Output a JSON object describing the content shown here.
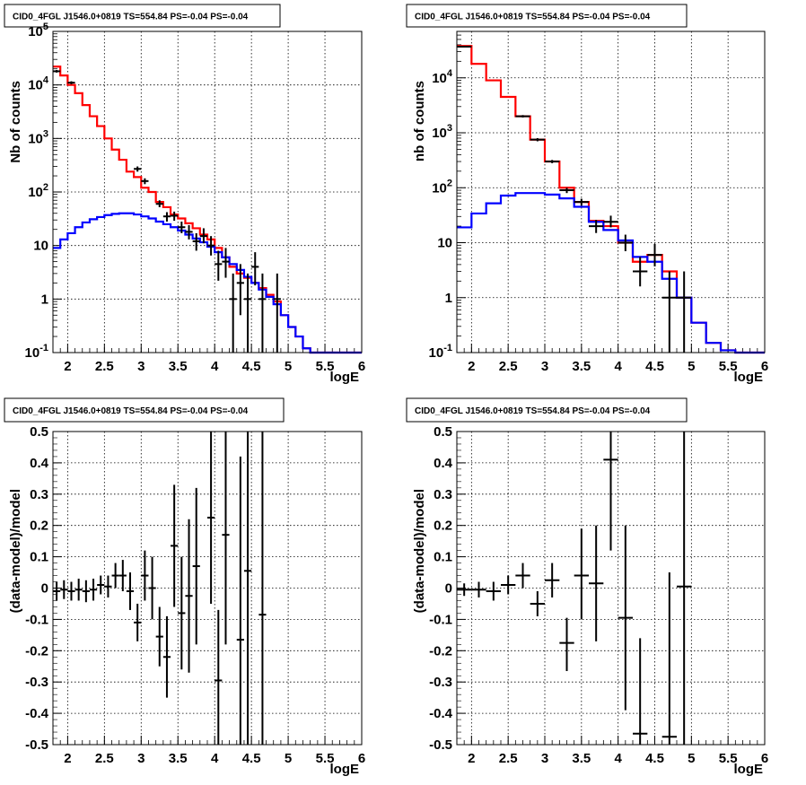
{
  "chart_data": [
    {
      "type": "line",
      "panel": "top-left",
      "title": "CID0_4FGL J1546.0+0819 TS=554.84 PS=-0.04 PS=-0.04",
      "xlabel": "logE",
      "ylabel": "Nb of counts",
      "xlim": [
        1.8,
        6.0
      ],
      "ylim": [
        0.1,
        100000
      ],
      "yscale": "log",
      "grid": true,
      "x_ticks": [
        "2",
        "2.5",
        "3",
        "3.5",
        "4",
        "4.5",
        "5",
        "5.5",
        "6"
      ],
      "y_ticks": [
        {
          "base": "10",
          "exp": "-1"
        },
        {
          "base": "1",
          "exp": ""
        },
        {
          "base": "10",
          "exp": ""
        },
        {
          "base": "10",
          "exp": "2"
        },
        {
          "base": "10",
          "exp": "3"
        },
        {
          "base": "10",
          "exp": "4"
        },
        {
          "base": "10",
          "exp": "5"
        }
      ],
      "series": [
        {
          "color": "#ff0000",
          "style": "step",
          "edges": [
            1.8,
            1.9,
            2.0,
            2.1,
            2.2,
            2.3,
            2.4,
            2.5,
            2.6,
            2.7,
            2.8,
            2.9,
            3.0,
            3.1,
            3.2,
            3.3,
            3.4,
            3.5,
            3.6,
            3.7,
            3.8,
            3.9,
            4.0,
            4.1,
            4.2,
            4.3,
            4.4,
            4.5,
            4.6,
            4.7,
            4.8,
            4.9,
            5.0,
            5.1,
            5.2,
            5.3,
            5.4,
            5.5,
            5.6,
            5.7,
            5.8,
            5.9,
            6.0
          ],
          "values": [
            22000,
            15000,
            10000,
            7000,
            4200,
            2600,
            1700,
            1000,
            620,
            400,
            240,
            190,
            120,
            100,
            65,
            52,
            38,
            32,
            26,
            21,
            16,
            13,
            9,
            6,
            4,
            3,
            2.5,
            2,
            1.6,
            1.2,
            0.9,
            0.5,
            0.3,
            0.2,
            0.12,
            0.1,
            0.1,
            0.1,
            0.1,
            0.1,
            0.1,
            0.1
          ]
        },
        {
          "color": "#0000ff",
          "style": "step",
          "edges": [
            1.8,
            1.9,
            2.0,
            2.1,
            2.2,
            2.3,
            2.4,
            2.5,
            2.6,
            2.7,
            2.8,
            2.9,
            3.0,
            3.1,
            3.2,
            3.3,
            3.4,
            3.5,
            3.6,
            3.7,
            3.8,
            3.9,
            4.0,
            4.1,
            4.2,
            4.3,
            4.4,
            4.5,
            4.6,
            4.7,
            4.8,
            4.9,
            5.0,
            5.1,
            5.2,
            5.3,
            5.4,
            5.5,
            5.6,
            5.7,
            5.8,
            5.9,
            6.0
          ],
          "values": [
            9,
            13,
            17,
            22,
            27,
            31,
            34,
            37,
            39,
            40,
            40,
            38,
            35,
            32,
            28,
            25,
            22,
            19,
            16,
            13.5,
            11.5,
            9.5,
            7.5,
            6,
            4.5,
            3.5,
            2.6,
            2,
            1.5,
            1.1,
            0.8,
            0.5,
            0.3,
            0.2,
            0.12,
            0.1,
            0.1,
            0.1,
            0.1,
            0.1,
            0.1,
            0.1
          ]
        }
      ],
      "points": [
        {
          "x": 1.85,
          "y": 18000,
          "lo": 17000,
          "hi": 19000,
          "xerr": 0.05
        },
        {
          "x": 2.05,
          "y": 11000,
          "lo": 10300,
          "hi": 11700,
          "xerr": 0.05
        },
        {
          "x": 2.95,
          "y": 270,
          "lo": 240,
          "hi": 300,
          "xerr": 0.05
        },
        {
          "x": 3.05,
          "y": 160,
          "lo": 140,
          "hi": 180,
          "xerr": 0.05
        },
        {
          "x": 3.25,
          "y": 60,
          "lo": 52,
          "hi": 70,
          "xerr": 0.05
        },
        {
          "x": 3.35,
          "y": 35,
          "lo": 28,
          "hi": 42,
          "xerr": 0.05
        },
        {
          "x": 3.45,
          "y": 36,
          "lo": 29,
          "hi": 43,
          "xerr": 0.05
        },
        {
          "x": 3.55,
          "y": 22,
          "lo": 17,
          "hi": 28,
          "xerr": 0.05
        },
        {
          "x": 3.65,
          "y": 18,
          "lo": 13,
          "hi": 24,
          "xerr": 0.05
        },
        {
          "x": 3.75,
          "y": 12,
          "lo": 8,
          "hi": 17,
          "xerr": 0.05
        },
        {
          "x": 3.85,
          "y": 15,
          "lo": 11,
          "hi": 21,
          "xerr": 0.05
        },
        {
          "x": 3.95,
          "y": 10,
          "lo": 6.5,
          "hi": 15,
          "xerr": 0.05
        },
        {
          "x": 4.05,
          "y": 4.5,
          "lo": 2.2,
          "hi": 8,
          "xerr": 0.05
        },
        {
          "x": 4.15,
          "y": 5,
          "lo": 2.5,
          "hi": 9,
          "xerr": 0.05
        },
        {
          "x": 4.25,
          "y": 1,
          "lo": 0.1,
          "hi": 3,
          "xerr": 0.05
        },
        {
          "x": 4.35,
          "y": 2,
          "lo": 0.5,
          "hi": 4.5,
          "xerr": 0.05
        },
        {
          "x": 4.45,
          "y": 1,
          "lo": 0.1,
          "hi": 3,
          "xerr": 0.05
        },
        {
          "x": 4.55,
          "y": 4,
          "lo": 1.8,
          "hi": 7.5,
          "xerr": 0.05
        },
        {
          "x": 4.65,
          "y": 1,
          "lo": 0.1,
          "hi": 3,
          "xerr": 0.05
        },
        {
          "x": 4.85,
          "y": 1,
          "lo": 0.1,
          "hi": 3,
          "xerr": 0.05
        }
      ]
    },
    {
      "type": "line",
      "panel": "top-right",
      "title": "CID0_4FGL J1546.0+0819 TS=554.84 PS=-0.04 PS=-0.04",
      "xlabel": "logE",
      "ylabel": "nb of counts",
      "xlim": [
        1.8,
        6.0
      ],
      "ylim": [
        0.1,
        70000
      ],
      "yscale": "log",
      "grid": true,
      "x_ticks": [
        "2",
        "2.5",
        "3",
        "3.5",
        "4",
        "4.5",
        "5",
        "5.5",
        "6"
      ],
      "y_ticks": [
        {
          "base": "10",
          "exp": "-1"
        },
        {
          "base": "1",
          "exp": ""
        },
        {
          "base": "10",
          "exp": ""
        },
        {
          "base": "10",
          "exp": "2"
        },
        {
          "base": "10",
          "exp": "3"
        },
        {
          "base": "10",
          "exp": "4"
        }
      ],
      "series": [
        {
          "color": "#ff0000",
          "style": "step",
          "edges": [
            1.8,
            2.0,
            2.2,
            2.4,
            2.6,
            2.8,
            3.0,
            3.2,
            3.4,
            3.6,
            3.8,
            4.0,
            4.2,
            4.4,
            4.6,
            4.8,
            5.0,
            5.2,
            5.4,
            5.6,
            5.8,
            6.0
          ],
          "values": [
            38000,
            18000,
            9000,
            4500,
            2000,
            750,
            300,
            100,
            55,
            25,
            20,
            10,
            4.5,
            6,
            3,
            1,
            0.35,
            0.15,
            0.11,
            0.1,
            0.1
          ]
        },
        {
          "color": "#0000ff",
          "style": "step",
          "edges": [
            1.8,
            2.0,
            2.2,
            2.4,
            2.6,
            2.8,
            3.0,
            3.2,
            3.4,
            3.6,
            3.8,
            4.0,
            4.2,
            4.4,
            4.6,
            4.8,
            5.0,
            5.2,
            5.4,
            5.6,
            5.8,
            6.0
          ],
          "values": [
            19,
            34,
            52,
            72,
            80,
            80,
            75,
            64,
            45,
            24,
            17,
            11,
            5.5,
            4.5,
            2.2,
            1,
            0.35,
            0.15,
            0.11,
            0.1,
            0.1
          ]
        }
      ],
      "points": [
        {
          "x": 1.9,
          "y": 37000,
          "lo": 36000,
          "hi": 38000,
          "xerr": 0.1
        },
        {
          "x": 2.7,
          "y": 2000,
          "lo": 1900,
          "hi": 2100,
          "xerr": 0.1
        },
        {
          "x": 2.9,
          "y": 750,
          "lo": 700,
          "hi": 800,
          "xerr": 0.1
        },
        {
          "x": 3.1,
          "y": 300,
          "lo": 280,
          "hi": 320,
          "xerr": 0.1
        },
        {
          "x": 3.3,
          "y": 90,
          "lo": 80,
          "hi": 100,
          "xerr": 0.1
        },
        {
          "x": 3.5,
          "y": 55,
          "lo": 47,
          "hi": 63,
          "xerr": 0.1
        },
        {
          "x": 3.7,
          "y": 20,
          "lo": 15,
          "hi": 26,
          "xerr": 0.1
        },
        {
          "x": 3.9,
          "y": 24,
          "lo": 19,
          "hi": 31,
          "xerr": 0.1
        },
        {
          "x": 4.1,
          "y": 10,
          "lo": 7,
          "hi": 14,
          "xerr": 0.1
        },
        {
          "x": 4.3,
          "y": 3,
          "lo": 1.6,
          "hi": 5.5,
          "xerr": 0.1
        },
        {
          "x": 4.5,
          "y": 6,
          "lo": 3.7,
          "hi": 9.5,
          "xerr": 0.1
        },
        {
          "x": 4.7,
          "y": 1,
          "lo": 0.1,
          "hi": 3,
          "xerr": 0.1
        },
        {
          "x": 4.9,
          "y": 1,
          "lo": 0.1,
          "hi": 3,
          "xerr": 0.1
        }
      ]
    },
    {
      "type": "scatter",
      "panel": "bottom-left",
      "title": "CID0_4FGL J1546.0+0819 TS=554.84 PS=-0.04 PS=-0.04",
      "xlabel": "logE",
      "ylabel": "(data-model)/model",
      "xlim": [
        1.8,
        6.0
      ],
      "ylim": [
        -0.5,
        0.5
      ],
      "yscale": "linear",
      "grid": true,
      "x_ticks": [
        "2",
        "2.5",
        "3",
        "3.5",
        "4",
        "4.5",
        "5",
        "5.5",
        "6"
      ],
      "y_ticks_linear": [
        "-0.5",
        "-0.4",
        "-0.3",
        "-0.2",
        "-0.1",
        "0",
        "0.1",
        "0.2",
        "0.3",
        "0.4",
        "0.5"
      ],
      "points": [
        {
          "x": 1.85,
          "y": -0.01,
          "lo": -0.04,
          "hi": 0.02,
          "xerr": 0.05
        },
        {
          "x": 1.95,
          "y": -0.005,
          "lo": -0.035,
          "hi": 0.025,
          "xerr": 0.05
        },
        {
          "x": 2.05,
          "y": -0.01,
          "lo": -0.04,
          "hi": 0.02,
          "xerr": 0.05
        },
        {
          "x": 2.15,
          "y": -0.005,
          "lo": -0.04,
          "hi": 0.03,
          "xerr": 0.05
        },
        {
          "x": 2.25,
          "y": -0.01,
          "lo": -0.045,
          "hi": 0.025,
          "xerr": 0.05
        },
        {
          "x": 2.35,
          "y": -0.005,
          "lo": -0.04,
          "hi": 0.03,
          "xerr": 0.05
        },
        {
          "x": 2.45,
          "y": 0.01,
          "lo": -0.02,
          "hi": 0.04,
          "xerr": 0.05
        },
        {
          "x": 2.55,
          "y": 0.005,
          "lo": -0.03,
          "hi": 0.04,
          "xerr": 0.05
        },
        {
          "x": 2.65,
          "y": 0.04,
          "lo": 0.0,
          "hi": 0.08,
          "xerr": 0.05
        },
        {
          "x": 2.75,
          "y": 0.04,
          "lo": -0.01,
          "hi": 0.09,
          "xerr": 0.05
        },
        {
          "x": 2.85,
          "y": -0.01,
          "lo": -0.07,
          "hi": 0.05,
          "xerr": 0.05
        },
        {
          "x": 2.95,
          "y": -0.11,
          "lo": -0.17,
          "hi": -0.05,
          "xerr": 0.05
        },
        {
          "x": 3.05,
          "y": 0.04,
          "lo": -0.04,
          "hi": 0.12,
          "xerr": 0.05
        },
        {
          "x": 3.15,
          "y": 0.0,
          "lo": -0.1,
          "hi": 0.1,
          "xerr": 0.05
        },
        {
          "x": 3.25,
          "y": -0.155,
          "lo": -0.25,
          "hi": -0.06,
          "xerr": 0.05
        },
        {
          "x": 3.35,
          "y": -0.22,
          "lo": -0.35,
          "hi": -0.09,
          "xerr": 0.05
        },
        {
          "x": 3.45,
          "y": 0.135,
          "lo": -0.06,
          "hi": 0.33,
          "xerr": 0.05
        },
        {
          "x": 3.55,
          "y": -0.08,
          "lo": -0.26,
          "hi": 0.1,
          "xerr": 0.05
        },
        {
          "x": 3.65,
          "y": -0.025,
          "lo": -0.27,
          "hi": 0.22,
          "xerr": 0.05
        },
        {
          "x": 3.75,
          "y": 0.07,
          "lo": -0.18,
          "hi": 0.32,
          "xerr": 0.05
        },
        {
          "x": 3.95,
          "y": 0.225,
          "lo": -0.05,
          "hi": 0.5,
          "xerr": 0.05
        },
        {
          "x": 4.05,
          "y": -0.295,
          "lo": -0.5,
          "hi": -0.07,
          "xerr": 0.05
        },
        {
          "x": 4.15,
          "y": 0.17,
          "lo": -0.18,
          "hi": 0.5,
          "xerr": 0.05
        },
        {
          "x": 4.35,
          "y": -0.165,
          "lo": -0.5,
          "hi": 0.42,
          "xerr": 0.05
        },
        {
          "x": 4.45,
          "y": 0.055,
          "lo": -0.5,
          "hi": 0.5,
          "xerr": 0.05
        },
        {
          "x": 4.65,
          "y": -0.085,
          "lo": -0.5,
          "hi": 0.5,
          "xerr": 0.05
        }
      ]
    },
    {
      "type": "scatter",
      "panel": "bottom-right",
      "title": "CID0_4FGL J1546.0+0819 TS=554.84 PS=-0.04 PS=-0.04",
      "xlabel": "logE",
      "ylabel": "(data-model)/model",
      "xlim": [
        1.8,
        6.0
      ],
      "ylim": [
        -0.5,
        0.5
      ],
      "yscale": "linear",
      "grid": true,
      "x_ticks": [
        "2",
        "2.5",
        "3",
        "3.5",
        "4",
        "4.5",
        "5",
        "5.5",
        "6"
      ],
      "y_ticks_linear": [
        "-0.5",
        "-0.4",
        "-0.3",
        "-0.2",
        "-0.1",
        "0",
        "0.1",
        "0.2",
        "0.3",
        "0.4",
        "0.5"
      ],
      "points": [
        {
          "x": 1.9,
          "y": -0.005,
          "lo": -0.025,
          "hi": 0.015,
          "xerr": 0.1
        },
        {
          "x": 2.1,
          "y": -0.005,
          "lo": -0.03,
          "hi": 0.02,
          "xerr": 0.1
        },
        {
          "x": 2.3,
          "y": -0.01,
          "lo": -0.04,
          "hi": 0.02,
          "xerr": 0.1
        },
        {
          "x": 2.5,
          "y": 0.01,
          "lo": -0.02,
          "hi": 0.04,
          "xerr": 0.1
        },
        {
          "x": 2.7,
          "y": 0.04,
          "lo": 0.0,
          "hi": 0.08,
          "xerr": 0.1
        },
        {
          "x": 2.9,
          "y": -0.05,
          "lo": -0.09,
          "hi": -0.01,
          "xerr": 0.1
        },
        {
          "x": 3.1,
          "y": 0.025,
          "lo": -0.03,
          "hi": 0.08,
          "xerr": 0.1
        },
        {
          "x": 3.3,
          "y": -0.175,
          "lo": -0.265,
          "hi": -0.095,
          "xerr": 0.1
        },
        {
          "x": 3.5,
          "y": 0.04,
          "lo": -0.1,
          "hi": 0.19,
          "xerr": 0.1
        },
        {
          "x": 3.7,
          "y": 0.015,
          "lo": -0.17,
          "hi": 0.2,
          "xerr": 0.1
        },
        {
          "x": 3.9,
          "y": 0.41,
          "lo": 0.12,
          "hi": 0.5,
          "xerr": 0.1
        },
        {
          "x": 4.1,
          "y": -0.095,
          "lo": -0.39,
          "hi": 0.2,
          "xerr": 0.1
        },
        {
          "x": 4.3,
          "y": -0.465,
          "lo": -0.5,
          "hi": -0.16,
          "xerr": 0.1
        },
        {
          "x": 4.7,
          "y": -0.475,
          "lo": -0.5,
          "hi": 0.05,
          "xerr": 0.1
        },
        {
          "x": 4.9,
          "y": 0.005,
          "lo": -0.5,
          "hi": 0.5,
          "xerr": 0.1
        }
      ]
    }
  ]
}
